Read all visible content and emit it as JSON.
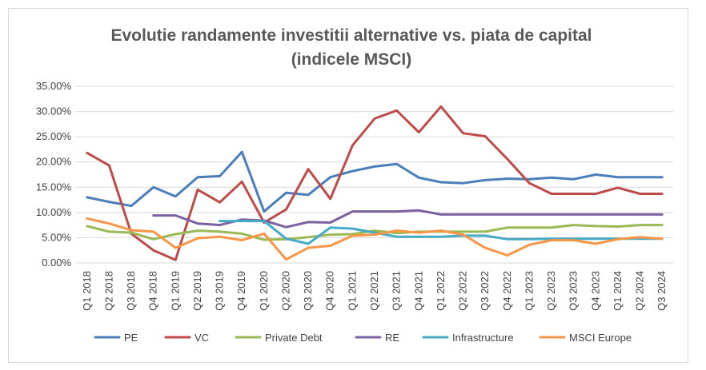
{
  "chart_data": {
    "type": "line",
    "title_line1": "Evolutie randamente investitii alternative vs. piata de capital",
    "title_line2": "(indicele MSCI)",
    "xlabel": "",
    "ylabel": "",
    "ylim": [
      0,
      35
    ],
    "y_ticks": [
      0,
      5,
      10,
      15,
      20,
      25,
      30,
      35
    ],
    "y_tick_labels": [
      "0.00%",
      "5.00%",
      "10.00%",
      "15.00%",
      "20.00%",
      "25.00%",
      "30.00%",
      "35.00%"
    ],
    "grid": true,
    "legend_position": "bottom",
    "categories": [
      "Q1 2018",
      "Q2 2018",
      "Q3 2018",
      "Q4 2018",
      "Q1 2019",
      "Q2 2019",
      "Q3 2019",
      "Q4 2019",
      "Q1 2020",
      "Q2 2020",
      "Q3 2020",
      "Q4 2020",
      "Q1 2021",
      "Q2 2021",
      "Q3 2021",
      "Q4 2021",
      "Q1 2022",
      "Q2 2022",
      "Q3 2022",
      "Q4 2022",
      "Q1 2023",
      "Q2 2023",
      "Q3 2023",
      "Q4 2023",
      "Q1 2024",
      "Q2 2024",
      "Q3 2024"
    ],
    "series": [
      {
        "name": "PE",
        "color": "#4a7ebb",
        "values": [
          13.0,
          12.1,
          11.3,
          15.0,
          13.2,
          17.0,
          17.2,
          22.0,
          10.2,
          13.9,
          13.5,
          17.0,
          18.2,
          19.1,
          19.6,
          16.9,
          16.0,
          15.8,
          16.4,
          16.7,
          16.6,
          16.9,
          16.6,
          17.5,
          17.0,
          17.0,
          17.0
        ]
      },
      {
        "name": "VC",
        "color": "#be4b48",
        "values": [
          21.8,
          19.3,
          5.8,
          2.5,
          0.6,
          14.5,
          12.0,
          16.1,
          8.0,
          10.6,
          18.6,
          12.7,
          23.3,
          28.6,
          30.2,
          25.9,
          31.0,
          25.7,
          25.1,
          20.6,
          15.8,
          13.7,
          13.7,
          13.7,
          14.9,
          13.7,
          13.7
        ]
      },
      {
        "name": "Private Debt",
        "color": "#98b954",
        "values": [
          7.3,
          6.2,
          6.0,
          4.7,
          5.7,
          6.4,
          6.2,
          5.8,
          4.6,
          4.7,
          5.1,
          5.6,
          5.7,
          6.4,
          5.9,
          6.2,
          6.2,
          6.2,
          6.2,
          7.0,
          7.0,
          7.0,
          7.5,
          7.3,
          7.2,
          7.5,
          7.5
        ]
      },
      {
        "name": "RE",
        "color": "#7d60a0",
        "values": [
          null,
          null,
          null,
          9.4,
          9.4,
          7.8,
          7.5,
          8.6,
          8.4,
          7.1,
          8.1,
          8.0,
          10.2,
          10.2,
          10.2,
          10.4,
          9.6,
          9.6,
          9.6,
          9.6,
          9.6,
          9.6,
          9.6,
          9.6,
          9.6,
          9.6,
          9.6
        ]
      },
      {
        "name": "Infrastructure",
        "color": "#46aac5",
        "values": [
          null,
          null,
          null,
          null,
          null,
          null,
          8.3,
          8.3,
          8.3,
          4.8,
          3.8,
          7.0,
          6.8,
          6.0,
          5.2,
          5.2,
          5.2,
          5.4,
          5.4,
          4.7,
          4.7,
          4.8,
          4.8,
          4.8,
          4.8,
          4.8,
          4.8
        ]
      },
      {
        "name": "MSCI Europe",
        "color": "#f79646",
        "values": [
          8.8,
          7.8,
          6.5,
          6.2,
          3.0,
          4.9,
          5.2,
          4.5,
          5.8,
          0.7,
          3.0,
          3.4,
          5.4,
          5.6,
          6.4,
          6.0,
          6.4,
          5.6,
          3.0,
          1.5,
          3.6,
          4.5,
          4.5,
          3.8,
          4.7,
          5.1,
          4.8
        ]
      }
    ]
  }
}
